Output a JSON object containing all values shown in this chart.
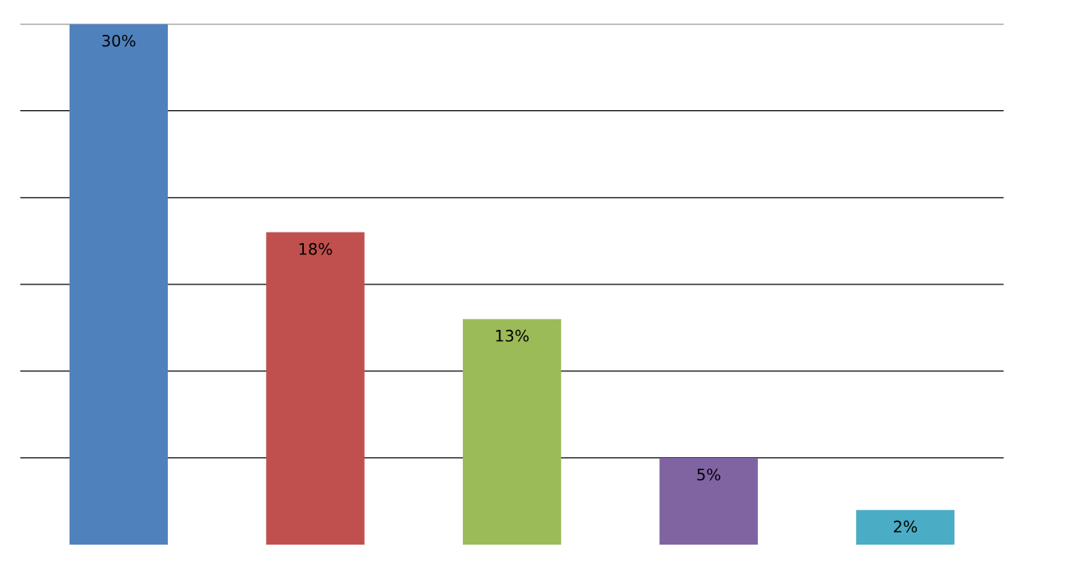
{
  "chart_data": {
    "type": "bar",
    "categories": [
      null,
      null,
      null,
      null,
      null
    ],
    "values": [
      30,
      18,
      13,
      5,
      2
    ],
    "colors": [
      "#4f81bd",
      "#c0504d",
      "#9bbb59",
      "#8064a2",
      "#4bacc6"
    ],
    "value_labels": [
      "30%",
      "18%",
      "13%",
      "5%",
      "2%"
    ],
    "ylim": [
      0,
      30
    ],
    "yticks": [
      {
        "value": 5,
        "label": null
      },
      {
        "value": 10,
        "label": null
      },
      {
        "value": 15,
        "label": null
      },
      {
        "value": 20,
        "label": null
      },
      {
        "value": 25,
        "label": null
      },
      {
        "value": 30,
        "label": null
      }
    ],
    "grid": "y",
    "legend": false
  }
}
